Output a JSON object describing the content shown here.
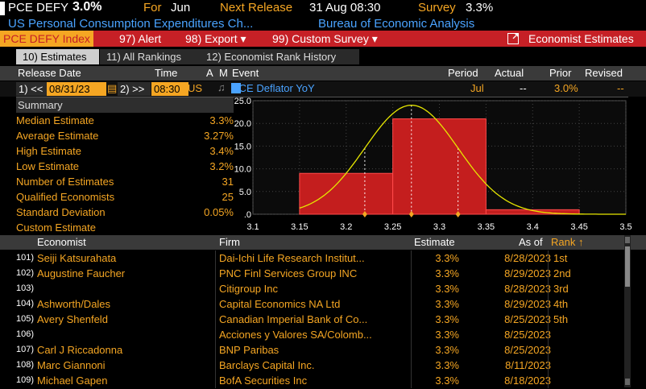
{
  "header": {
    "ticker": "PCE DEFY",
    "value": "3.0%",
    "for_label": "For",
    "for_period": "Jun",
    "next_release_label": "Next Release",
    "next_release": "31 Aug 08:30",
    "survey_label": "Survey",
    "survey_value": "3.3%",
    "subtitle": "US Personal Consumption Expenditures Ch...",
    "source": "Bureau of Economic Analysis"
  },
  "toolbar": {
    "security": "PCE DEFY Index",
    "alert": "97) Alert",
    "export": "98) Export ▾",
    "custom_survey": "99) Custom Survey ▾",
    "economist_estimates": "Economist Estimates"
  },
  "tabs": [
    {
      "label": "10) Estimates"
    },
    {
      "label": "11) All Rankings"
    },
    {
      "label": "12) Economist Rank History"
    }
  ],
  "columns": {
    "release_date": "Release Date",
    "time": "Time",
    "a": "A",
    "m": "M",
    "event": "Event",
    "period": "Period",
    "actual": "Actual",
    "prior": "Prior",
    "revised": "Revised"
  },
  "event_row": {
    "prev_btn": "1) <<",
    "date": "08/31/23",
    "next_btn": "2) >>",
    "time": "08:30",
    "country": "US",
    "event": "PCE Deflator YoY",
    "period": "Jul",
    "actual": "--",
    "prior": "3.0%",
    "revised": "--"
  },
  "summary": {
    "title": "Summary",
    "rows": [
      {
        "label": "Median Estimate",
        "value": "3.3%"
      },
      {
        "label": "Average Estimate",
        "value": "3.27%"
      },
      {
        "label": "High Estimate",
        "value": "3.4%"
      },
      {
        "label": "Low Estimate",
        "value": "3.2%"
      },
      {
        "label": "Number of Estimates",
        "value": "31"
      },
      {
        "label": "Qualified Economists",
        "value": "25"
      },
      {
        "label": "Standard Deviation",
        "value": "0.05%"
      },
      {
        "label": "Custom Estimate",
        "value": ""
      }
    ]
  },
  "chart_data": {
    "type": "bar",
    "x_ticks": [
      "3.1",
      "3.15",
      "3.2",
      "3.25",
      "3.3",
      "3.35",
      "3.4",
      "3.45",
      "3.5"
    ],
    "y_ticks": [
      ".0",
      "5.0",
      "10.0",
      "15.0",
      "20.0",
      "25.0"
    ],
    "xlim": [
      3.1,
      3.5
    ],
    "ylim": [
      0,
      25
    ],
    "bins": [
      {
        "from": 3.15,
        "to": 3.25,
        "value": 9
      },
      {
        "from": 3.25,
        "to": 3.35,
        "value": 21
      },
      {
        "from": 3.35,
        "to": 3.45,
        "value": 1
      }
    ],
    "curve": {
      "mean": 3.27,
      "sd": 0.05,
      "peak": 24
    },
    "markers": [
      3.22,
      3.27,
      3.32
    ],
    "bar_color": "#c41e1e",
    "curve_color": "#e6e600"
  },
  "table": {
    "headers": {
      "economist": "Economist",
      "firm": "Firm",
      "estimate": "Estimate",
      "as_of": "As of",
      "rank": "Rank ↑"
    },
    "rows": [
      {
        "num": "101)",
        "economist": "Seiji Katsurahata",
        "firm": "Dai-Ichi Life Research Institut...",
        "estimate": "3.3%",
        "as_of": "8/28/2023",
        "rank": "1st"
      },
      {
        "num": "102)",
        "economist": "Augustine Faucher",
        "firm": "PNC Finl Services Group INC",
        "estimate": "3.3%",
        "as_of": "8/29/2023",
        "rank": "2nd"
      },
      {
        "num": "103)",
        "economist": "",
        "firm": "Citigroup Inc",
        "estimate": "3.3%",
        "as_of": "8/28/2023",
        "rank": "3rd"
      },
      {
        "num": "104)",
        "economist": "Ashworth/Dales",
        "firm": "Capital Economics NA Ltd",
        "estimate": "3.3%",
        "as_of": "8/29/2023",
        "rank": "4th"
      },
      {
        "num": "105)",
        "economist": "Avery Shenfeld",
        "firm": "Canadian Imperial Bank of Co...",
        "estimate": "3.3%",
        "as_of": "8/25/2023",
        "rank": "5th"
      },
      {
        "num": "106)",
        "economist": "",
        "firm": "Acciones y Valores SA/Colomb...",
        "estimate": "3.3%",
        "as_of": "8/25/2023",
        "rank": ""
      },
      {
        "num": "107)",
        "economist": "Carl J Riccadonna",
        "firm": "BNP Paribas",
        "estimate": "3.3%",
        "as_of": "8/25/2023",
        "rank": ""
      },
      {
        "num": "108)",
        "economist": "Marc Giannoni",
        "firm": "Barclays Capital Inc.",
        "estimate": "3.3%",
        "as_of": "8/11/2023",
        "rank": ""
      },
      {
        "num": "109)",
        "economist": "Michael Gapen",
        "firm": "BofA Securities Inc",
        "estimate": "3.3%",
        "as_of": "8/18/2023",
        "rank": ""
      }
    ]
  }
}
